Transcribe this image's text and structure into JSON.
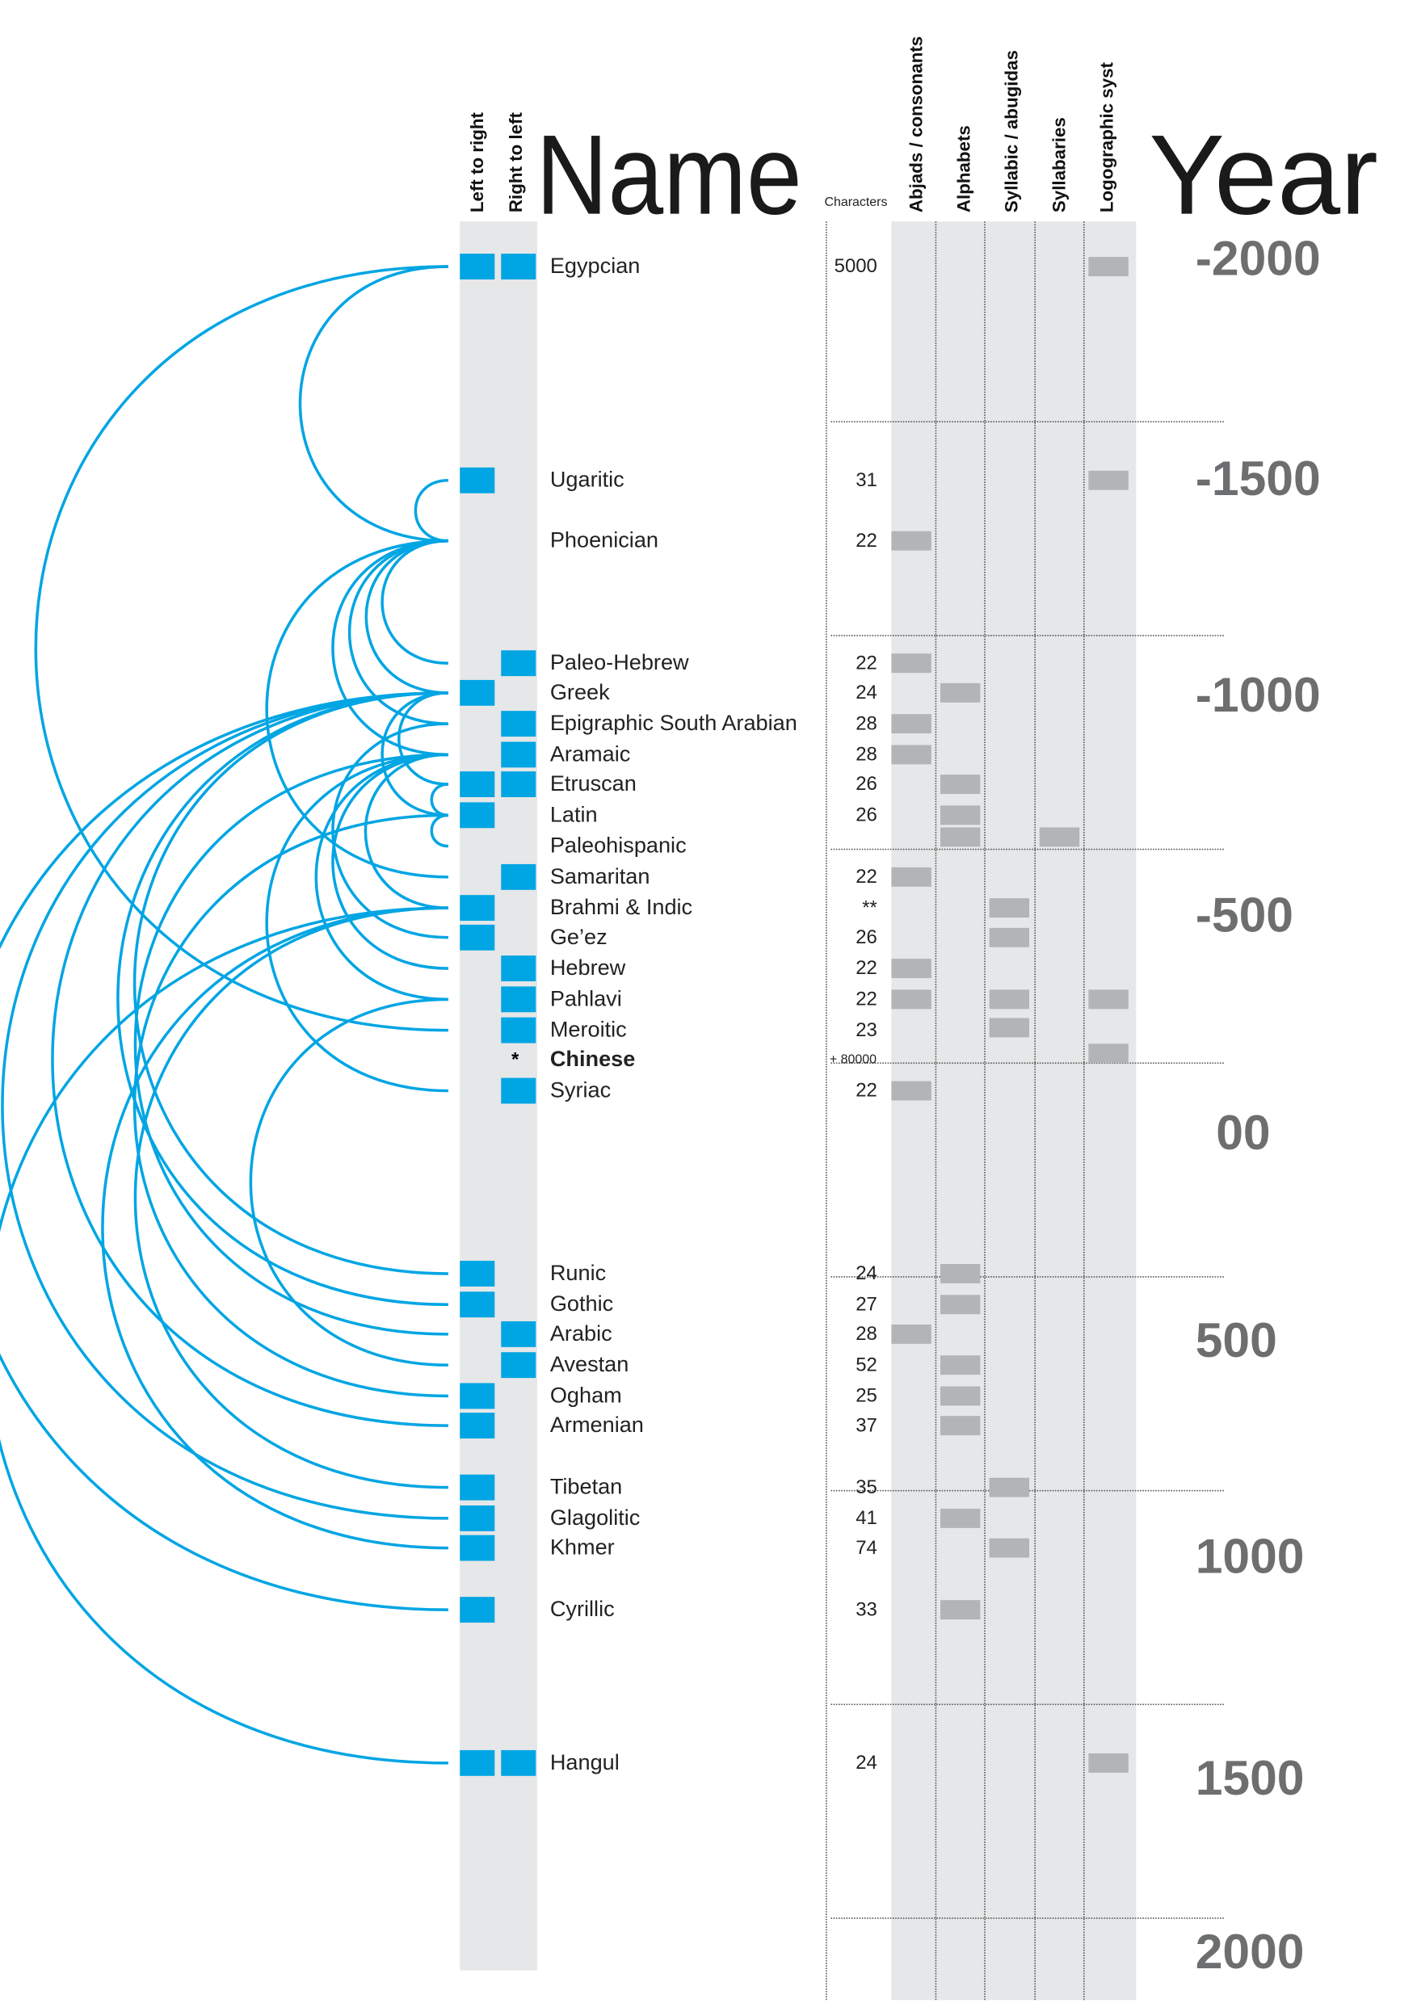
{
  "headers": {
    "ltr": "Left to right",
    "rtl": "Right to left",
    "name": "Name",
    "characters": "Characters",
    "types": [
      "Abjads / consonants",
      "Alphabets",
      "Syllabic  / abugidas",
      "Syllabaries",
      "Logographic syst"
    ],
    "year": "Year"
  },
  "colors": {
    "direction": "#00a5e3",
    "type": "#b3b4b6",
    "arc": "#00a5e3",
    "year": "#6d6e70"
  },
  "years": [
    "-2000",
    "-1500",
    "-1000",
    "-500",
    "00",
    "500",
    "1000",
    "1500",
    "2000"
  ],
  "scripts": [
    {
      "name": "Egypcian",
      "ltr": true,
      "rtl": true,
      "chars": "5000",
      "types": [
        4
      ]
    },
    {
      "name": "Ugaritic",
      "ltr": true,
      "rtl": false,
      "chars": "31",
      "types": [
        4
      ]
    },
    {
      "name": "Phoenician",
      "ltr": false,
      "rtl": false,
      "chars": "22",
      "types": [
        0
      ]
    },
    {
      "name": "Paleo-Hebrew",
      "ltr": false,
      "rtl": true,
      "chars": "22",
      "types": [
        0
      ]
    },
    {
      "name": "Greek",
      "ltr": true,
      "rtl": false,
      "chars": "24",
      "types": [
        1
      ]
    },
    {
      "name": "Epigraphic South Arabian",
      "ltr": false,
      "rtl": true,
      "chars": "28",
      "types": [
        0
      ]
    },
    {
      "name": "Aramaic",
      "ltr": false,
      "rtl": true,
      "chars": "28",
      "types": [
        0
      ]
    },
    {
      "name": "Etruscan",
      "ltr": true,
      "rtl": true,
      "chars": "26",
      "types": [
        1
      ]
    },
    {
      "name": "Latin",
      "ltr": true,
      "rtl": false,
      "chars": "26",
      "types": [
        1
      ]
    },
    {
      "name": "Paleohispanic",
      "ltr": false,
      "rtl": false,
      "chars": "",
      "types": [
        1,
        3
      ]
    },
    {
      "name": "Samaritan",
      "ltr": false,
      "rtl": true,
      "chars": "22",
      "types": [
        0
      ]
    },
    {
      "name": "Brahmi & Indic",
      "ltr": true,
      "rtl": false,
      "chars": "**",
      "types": [
        2
      ]
    },
    {
      "name": "Ge’ez",
      "ltr": true,
      "rtl": false,
      "chars": "26",
      "types": [
        2
      ]
    },
    {
      "name": "Hebrew",
      "ltr": false,
      "rtl": true,
      "chars": "22",
      "types": [
        0
      ]
    },
    {
      "name": "Pahlavi",
      "ltr": false,
      "rtl": true,
      "chars": "22",
      "types": [
        0,
        2,
        4
      ]
    },
    {
      "name": "Meroitic",
      "ltr": false,
      "rtl": true,
      "chars": "23",
      "types": [
        2
      ]
    },
    {
      "name": "Chinese",
      "ltr": false,
      "rtl": false,
      "mark": "*",
      "bold": true,
      "chars": "+ 80000",
      "types": [
        4
      ]
    },
    {
      "name": "Syriac",
      "ltr": false,
      "rtl": true,
      "chars": "22",
      "types": [
        0
      ]
    },
    {
      "name": "Runic",
      "ltr": true,
      "rtl": false,
      "chars": "24",
      "types": [
        1
      ]
    },
    {
      "name": "Gothic",
      "ltr": true,
      "rtl": false,
      "chars": "27",
      "types": [
        1
      ]
    },
    {
      "name": "Arabic",
      "ltr": false,
      "rtl": true,
      "chars": "28",
      "types": [
        0
      ]
    },
    {
      "name": "Avestan",
      "ltr": false,
      "rtl": true,
      "chars": "52",
      "types": [
        1
      ]
    },
    {
      "name": "Ogham",
      "ltr": true,
      "rtl": false,
      "chars": "25",
      "types": [
        1
      ]
    },
    {
      "name": "Armenian",
      "ltr": true,
      "rtl": false,
      "chars": "37",
      "types": [
        1
      ]
    },
    {
      "name": "Tibetan",
      "ltr": true,
      "rtl": false,
      "chars": "35",
      "types": [
        2
      ]
    },
    {
      "name": "Glagolitic",
      "ltr": true,
      "rtl": false,
      "chars": "41",
      "types": [
        1
      ]
    },
    {
      "name": "Khmer",
      "ltr": true,
      "rtl": false,
      "chars": "74",
      "types": [
        2
      ]
    },
    {
      "name": "Cyrillic",
      "ltr": true,
      "rtl": false,
      "chars": "33",
      "types": [
        1
      ]
    },
    {
      "name": "Hangul",
      "ltr": true,
      "rtl": true,
      "chars": "24",
      "types": [
        4
      ]
    }
  ],
  "links": [
    [
      0,
      2
    ],
    [
      0,
      15
    ],
    [
      1,
      2
    ],
    [
      2,
      3
    ],
    [
      2,
      4
    ],
    [
      2,
      6
    ],
    [
      2,
      5
    ],
    [
      2,
      10
    ],
    [
      4,
      7
    ],
    [
      4,
      8
    ],
    [
      4,
      18
    ],
    [
      4,
      19
    ],
    [
      4,
      25
    ],
    [
      4,
      27
    ],
    [
      6,
      11
    ],
    [
      6,
      13
    ],
    [
      6,
      14
    ],
    [
      6,
      17
    ],
    [
      6,
      20
    ],
    [
      7,
      8
    ],
    [
      8,
      22
    ],
    [
      8,
      9
    ],
    [
      5,
      12
    ],
    [
      11,
      24
    ],
    [
      11,
      26
    ],
    [
      11,
      28
    ],
    [
      14,
      21
    ],
    [
      4,
      23
    ]
  ]
}
